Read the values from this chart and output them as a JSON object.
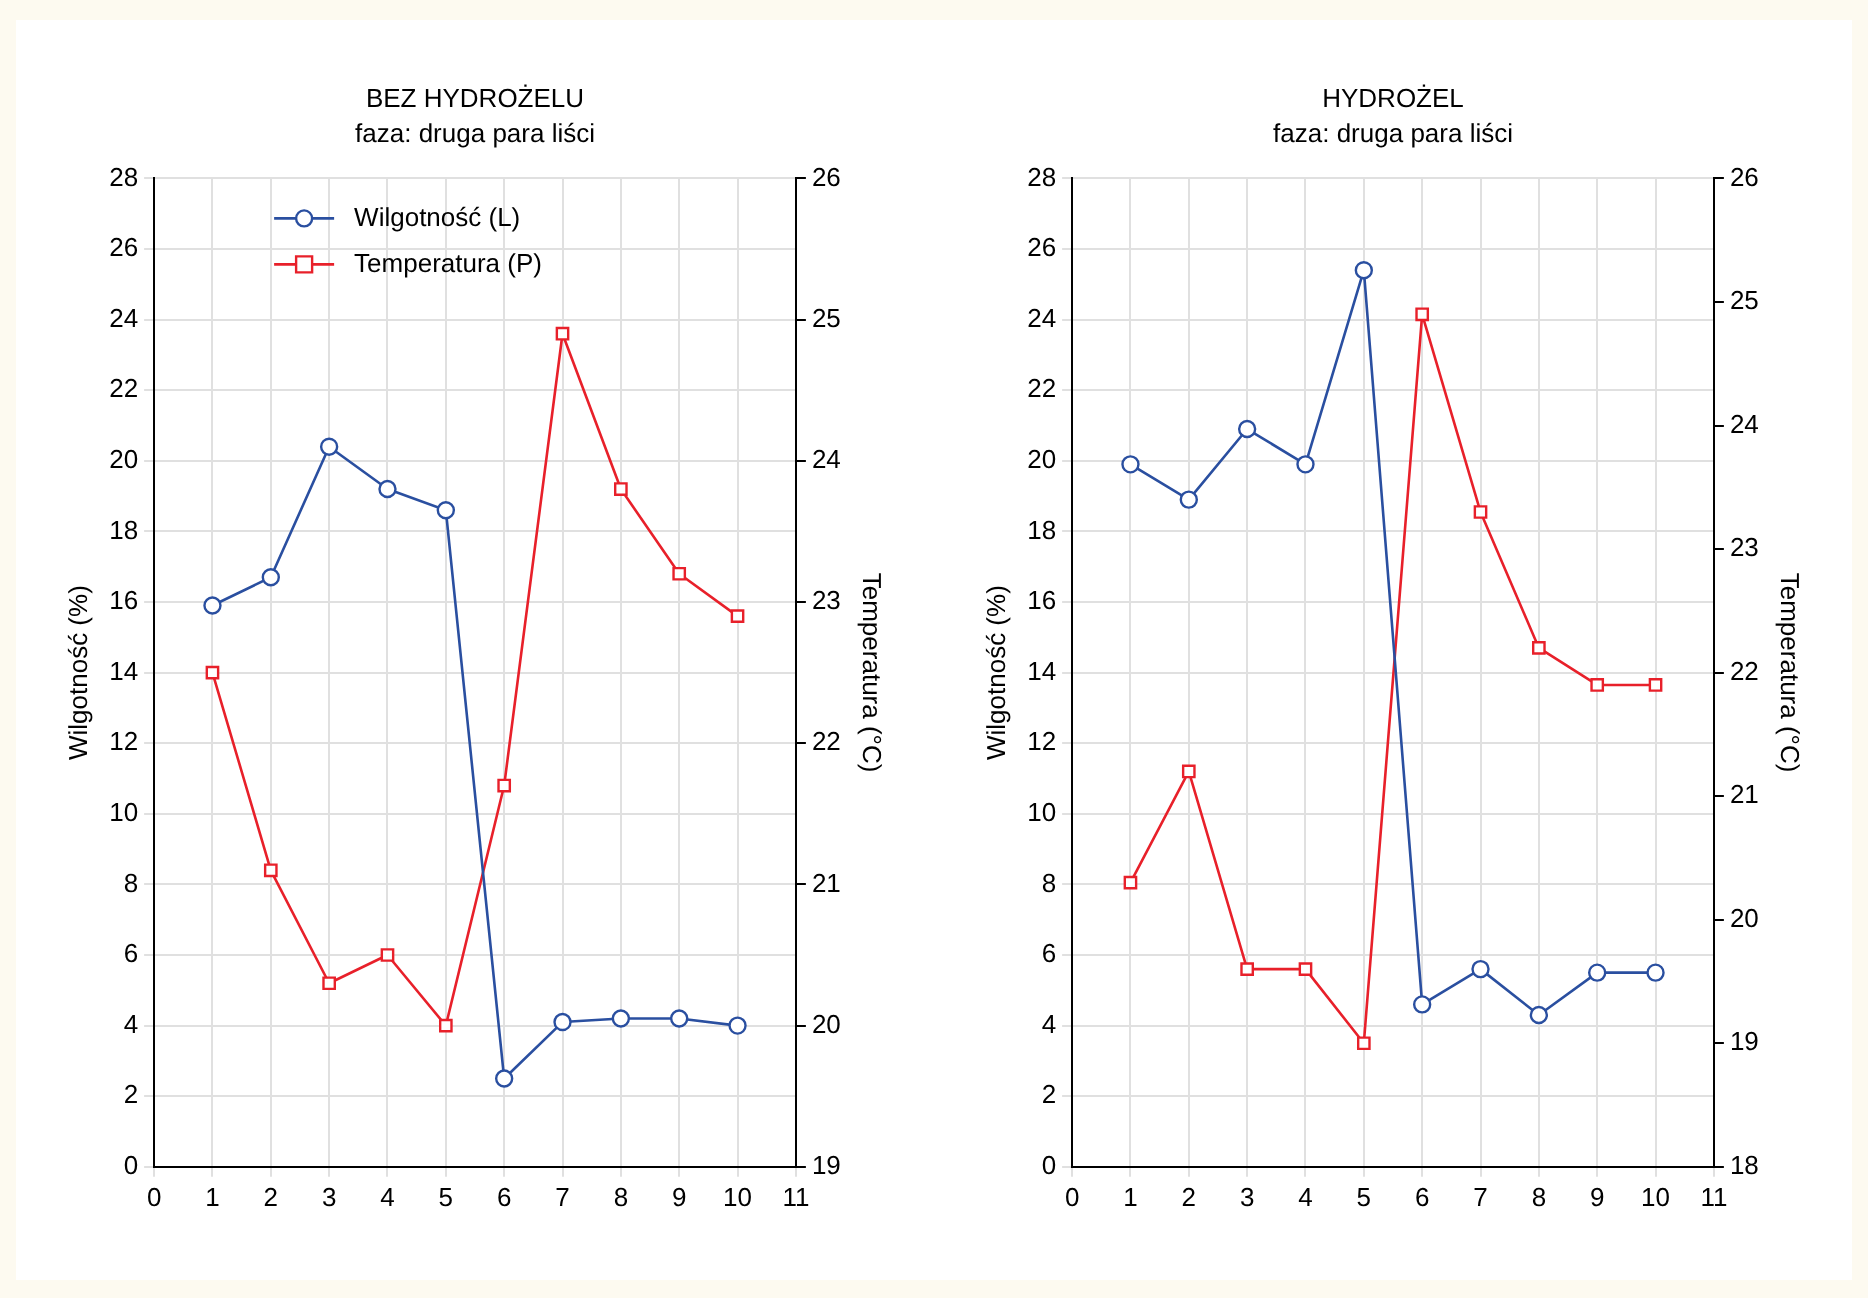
{
  "chart_data": [
    {
      "type": "line",
      "title": "BEZ HYDROŻELU",
      "subtitle": "faza: druga para liści",
      "ylabel": "Wilgotność (%)",
      "y2label": "Temperatura (°C)",
      "x": [
        1,
        2,
        3,
        4,
        5,
        6,
        7,
        8,
        9,
        10
      ],
      "xlim": [
        0,
        11
      ],
      "xticks": [
        0,
        1,
        2,
        3,
        4,
        5,
        6,
        7,
        8,
        9,
        10,
        11
      ],
      "ylim": [
        0,
        28
      ],
      "yticks": [
        0,
        2,
        4,
        6,
        8,
        10,
        12,
        14,
        16,
        18,
        20,
        22,
        24,
        26,
        28
      ],
      "y2lim": [
        19,
        26
      ],
      "y2ticks": [
        19,
        20,
        21,
        22,
        23,
        24,
        25,
        26
      ],
      "grid": true,
      "legend": "top left",
      "line_style": "solid",
      "series": [
        {
          "name": "Wilgotność (L)",
          "color": "#2a4fa0",
          "marker": "circle",
          "values": [
            15.9,
            16.7,
            20.4,
            19.2,
            18.6,
            2.5,
            4.1,
            4.2,
            4.2,
            4.0
          ]
        },
        {
          "name": "Temperatura (P)",
          "color": "#e8202a",
          "marker": "square",
          "axis": "y2",
          "values": [
            22.5,
            21.1,
            20.3,
            20.5,
            20.0,
            21.7,
            24.9,
            23.8,
            23.2,
            22.9
          ]
        }
      ]
    },
    {
      "type": "line",
      "title": "HYDROŻEL",
      "subtitle": "faza: druga para liści",
      "ylabel": "Wilgotność (%)",
      "y2label": "Temperatura (°C)",
      "x": [
        1,
        2,
        3,
        4,
        5,
        6,
        7,
        8,
        9,
        10
      ],
      "xlim": [
        0,
        11
      ],
      "xticks": [
        0,
        1,
        2,
        3,
        4,
        5,
        6,
        7,
        8,
        9,
        10,
        11
      ],
      "ylim": [
        0,
        28
      ],
      "yticks": [
        0,
        2,
        4,
        6,
        8,
        10,
        12,
        14,
        16,
        18,
        20,
        22,
        24,
        26,
        28
      ],
      "y2lim": [
        18,
        26
      ],
      "y2ticks": [
        18,
        19,
        20,
        21,
        22,
        23,
        24,
        25,
        26
      ],
      "grid": true,
      "line_style": "solid",
      "series": [
        {
          "color": "#2a4fa0",
          "marker": "circle",
          "values": [
            19.9,
            18.9,
            20.9,
            19.9,
            25.4,
            4.6,
            5.6,
            4.3,
            5.5,
            5.5
          ]
        },
        {
          "color": "#e8202a",
          "marker": "square",
          "axis": "y2",
          "values": [
            20.3,
            21.2,
            19.6,
            19.6,
            19.0,
            24.9,
            23.3,
            22.2,
            21.9,
            21.9
          ]
        }
      ]
    }
  ]
}
